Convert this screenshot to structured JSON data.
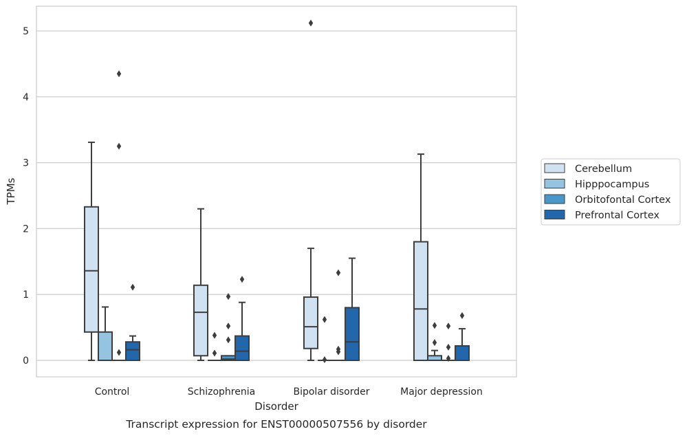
{
  "chart_data": {
    "type": "box",
    "caption": "Transcript expression for ENST00000507556 by disorder",
    "xlabel": "Disorder",
    "ylabel": "TPMs",
    "ylim": [
      -0.25,
      5.38
    ],
    "yticks": [
      0,
      1,
      2,
      3,
      4,
      5
    ],
    "grid": "horizontal",
    "legend_position": "right",
    "categories": [
      "Control",
      "Schizophrenia",
      "Bipolar disorder",
      "Major depression"
    ],
    "series": [
      {
        "name": "Cerebellum",
        "color": "#d0e1f2",
        "boxes": [
          {
            "min": 0,
            "q1": 0.43,
            "median": 1.36,
            "q3": 2.33,
            "max": 3.31,
            "outliers": []
          },
          {
            "min": 0,
            "q1": 0.07,
            "median": 0.73,
            "q3": 1.14,
            "max": 2.3,
            "outliers": []
          },
          {
            "min": 0,
            "q1": 0.18,
            "median": 0.51,
            "q3": 0.96,
            "max": 1.7,
            "outliers": [
              5.12
            ]
          },
          {
            "min": 0,
            "q1": 0.0,
            "median": 0.78,
            "q3": 1.8,
            "max": 3.13,
            "outliers": []
          }
        ]
      },
      {
        "name": "Hipppocampus",
        "color": "#94c4df",
        "boxes": [
          {
            "min": 0,
            "q1": 0.0,
            "median": 0.0,
            "q3": 0.43,
            "max": 0.81,
            "outliers": []
          },
          {
            "min": 0,
            "q1": 0.0,
            "median": 0.0,
            "q3": 0.0,
            "max": 0.0,
            "outliers": [
              0.38,
              0.11
            ]
          },
          {
            "min": 0,
            "q1": 0.0,
            "median": 0.0,
            "q3": 0.0,
            "max": 0.0,
            "outliers": [
              0.62,
              0.01
            ]
          },
          {
            "min": 0,
            "q1": 0.0,
            "median": 0.0,
            "q3": 0.07,
            "max": 0.15,
            "outliers": [
              0.53,
              0.27
            ]
          }
        ]
      },
      {
        "name": "Orbitofontal Cortex",
        "color": "#4a98c9",
        "boxes": [
          {
            "min": 0,
            "q1": 0.0,
            "median": 0.0,
            "q3": 0.0,
            "max": 0.0,
            "outliers": [
              4.35,
              3.25,
              0.12
            ]
          },
          {
            "min": 0,
            "q1": 0.0,
            "median": 0.02,
            "q3": 0.07,
            "max": 0.07,
            "outliers": [
              0.97,
              0.52,
              0.31
            ]
          },
          {
            "min": 0,
            "q1": 0.0,
            "median": 0.0,
            "q3": 0.0,
            "max": 0.0,
            "outliers": [
              1.33,
              0.17,
              0.13
            ]
          },
          {
            "min": 0,
            "q1": 0.0,
            "median": 0.0,
            "q3": 0.0,
            "max": 0.0,
            "outliers": [
              0.52,
              0.2,
              0.03
            ]
          }
        ]
      },
      {
        "name": "Prefrontal Cortex",
        "color": "#2266ac",
        "boxes": [
          {
            "min": 0,
            "q1": 0.0,
            "median": 0.16,
            "q3": 0.28,
            "max": 0.37,
            "outliers": [
              1.11
            ]
          },
          {
            "min": 0,
            "q1": 0.0,
            "median": 0.14,
            "q3": 0.37,
            "max": 0.88,
            "outliers": [
              1.23
            ]
          },
          {
            "min": 0,
            "q1": 0.0,
            "median": 0.28,
            "q3": 0.8,
            "max": 1.55,
            "outliers": []
          },
          {
            "min": 0,
            "q1": 0.0,
            "median": 0.0,
            "q3": 0.22,
            "max": 0.48,
            "outliers": [
              0.68
            ]
          }
        ]
      }
    ]
  }
}
